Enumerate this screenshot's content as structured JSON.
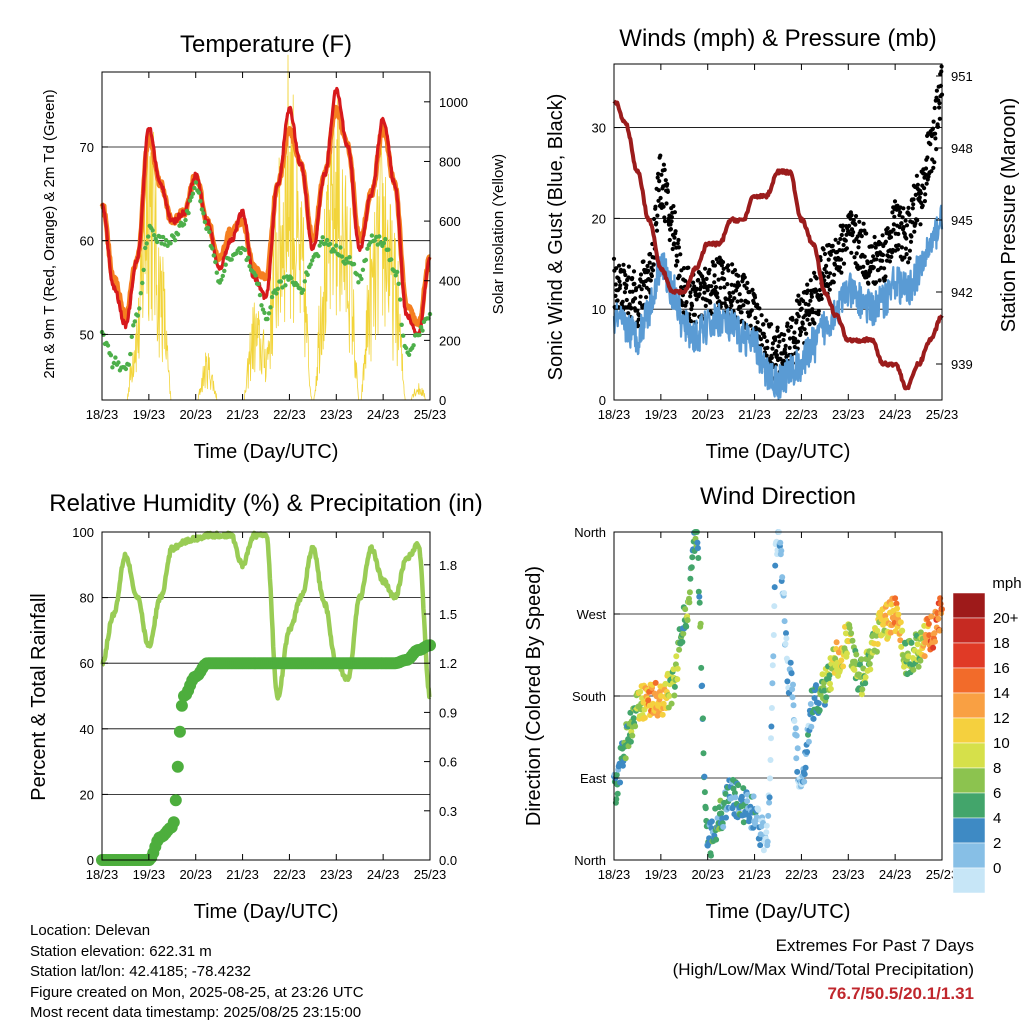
{
  "colors": {
    "temp_2m": "#d7191c",
    "temp_9m": "#f57f20",
    "dewpoint": "#4daf4a",
    "solar": "#f2d43a",
    "wind": "#5a9bd4",
    "gust": "#000000",
    "pressure": "#9b1c1c",
    "humidity": "#99cc55",
    "precip": "#4dae3d",
    "extremes_text": "#c0272d"
  },
  "day_ticks": [
    "18/23",
    "19/23",
    "20/23",
    "21/23",
    "22/23",
    "23/23",
    "24/23",
    "25/23"
  ],
  "charts": {
    "temperature": {
      "title": "Temperature (F)",
      "xlabel": "Time (Day/UTC)",
      "ylabel_left": "2m & 9m T (Red, Orange) & 2m Td (Green)",
      "ylabel_right": "Solar Insolation (Yellow)",
      "left_ticks": [
        "50",
        "60",
        "70"
      ],
      "right_ticks": [
        "0",
        "200",
        "400",
        "600",
        "800",
        "1000"
      ]
    },
    "winds": {
      "title": "Winds (mph) & Pressure (mb)",
      "xlabel": "Time (Day/UTC)",
      "ylabel_left": "Sonic Wind & Gust (Blue, Black)",
      "ylabel_right": "Station Pressure (Maroon)",
      "left_ticks": [
        "0",
        "10",
        "20",
        "30"
      ],
      "right_ticks": [
        "939",
        "942",
        "945",
        "948",
        "951"
      ]
    },
    "humidity": {
      "title": "Relative Humidity (%) & Precipitation (in)",
      "xlabel": "Time (Day/UTC)",
      "ylabel_left": "Percent & Total Rainfall",
      "left_ticks": [
        "0",
        "20",
        "40",
        "60",
        "80",
        "100"
      ],
      "right_ticks": [
        "0.0",
        "0.3",
        "0.6",
        "0.9",
        "1.2",
        "1.5",
        "1.8"
      ]
    },
    "direction": {
      "title": "Wind Direction",
      "xlabel": "Time (Day/UTC)",
      "ylabel_left": "Direction (Colored By Speed)",
      "left_ticks": [
        "North",
        "East",
        "South",
        "West",
        "North"
      ],
      "legend_title": "mph",
      "legend_labels": [
        "20+",
        "18",
        "16",
        "14",
        "12",
        "10",
        "8",
        "6",
        "4",
        "2",
        "0"
      ],
      "legend_colors": [
        "#9e1a1a",
        "#c62a22",
        "#e03a26",
        "#f26b2a",
        "#f9a043",
        "#f5d03e",
        "#d6e04a",
        "#8cc34f",
        "#43a56b",
        "#3e8ac4",
        "#87bfe6",
        "#c7e6f7"
      ]
    }
  },
  "info": {
    "location": "Location: Delevan",
    "elevation": "Station elevation: 622.31 m",
    "latlon": "Station lat/lon: 42.4185; -78.4232",
    "created": "Figure created on Mon, 2025-08-25, at 23:26 UTC",
    "timestamp": "Most recent data timestamp: 2025/08/25 23:15:00"
  },
  "extremes": {
    "title": "Extremes For Past 7 Days",
    "subtitle": "(High/Low/Max Wind/Total Precipitation)",
    "values": "76.7/50.5/20.1/1.31"
  },
  "chart_data": [
    {
      "type": "line",
      "title": "Temperature (F)",
      "xlabel": "Time (Day/UTC)",
      "ylabel": "2m & 9m T (Red, Orange) & 2m Td (Green)",
      "y2label": "Solar Insolation (Yellow)",
      "x": [
        0,
        0.25,
        0.5,
        0.75,
        1,
        1.25,
        1.5,
        1.75,
        2,
        2.25,
        2.5,
        2.75,
        3,
        3.25,
        3.5,
        3.75,
        4,
        4.25,
        4.5,
        4.75,
        5,
        5.25,
        5.5,
        5.75,
        6,
        6.25,
        6.5,
        6.75,
        7
      ],
      "ylim": [
        43,
        78
      ],
      "y2lim": [
        0,
        1100
      ],
      "series": [
        {
          "name": "2m T",
          "axis": "left",
          "values": [
            64,
            55,
            51,
            58,
            72,
            66,
            62,
            63,
            67,
            62,
            57,
            60,
            63,
            56,
            54,
            66,
            74,
            68,
            59,
            67,
            76,
            70,
            59,
            65,
            73,
            66,
            52,
            50,
            58
          ]
        },
        {
          "name": "9m T",
          "axis": "left",
          "values": [
            64,
            56,
            52,
            58,
            71,
            66,
            62,
            63,
            67,
            62,
            58,
            61,
            62,
            57,
            56,
            66,
            72,
            68,
            60,
            67,
            74,
            70,
            60,
            65,
            72,
            66,
            53,
            51,
            58
          ]
        },
        {
          "name": "2m Td",
          "axis": "left",
          "values": [
            50,
            47,
            46,
            52,
            61,
            60,
            60,
            62,
            66,
            61,
            56,
            58,
            59,
            56,
            52,
            55,
            56,
            55,
            58,
            60,
            59,
            58,
            56,
            60,
            60,
            57,
            48,
            50,
            52
          ]
        },
        {
          "name": "Solar Insolation",
          "axis": "right",
          "values": [
            0,
            0,
            0,
            300,
            1000,
            500,
            0,
            0,
            0,
            150,
            0,
            0,
            0,
            300,
            200,
            700,
            1050,
            600,
            0,
            600,
            950,
            650,
            0,
            500,
            800,
            500,
            0,
            50,
            0
          ]
        }
      ]
    },
    {
      "type": "line",
      "title": "Winds (mph) & Pressure (mb)",
      "xlabel": "Time (Day/UTC)",
      "ylabel": "Sonic Wind & Gust (Blue, Black)",
      "y2label": "Station Pressure (Maroon)",
      "x": [
        0,
        0.25,
        0.5,
        0.75,
        1,
        1.25,
        1.5,
        1.75,
        2,
        2.25,
        2.5,
        2.75,
        3,
        3.25,
        3.5,
        3.75,
        4,
        4.25,
        4.5,
        4.75,
        5,
        5.25,
        5.5,
        5.75,
        6,
        6.25,
        6.5,
        6.75,
        7
      ],
      "ylim": [
        0,
        37
      ],
      "y2lim": [
        937.5,
        951.5
      ],
      "series": [
        {
          "name": "Sonic Wind",
          "axis": "left",
          "values": [
            9,
            8,
            7,
            10,
            15,
            12,
            8,
            7,
            8,
            9,
            8,
            7,
            6,
            3,
            2,
            3,
            4,
            6,
            8,
            10,
            12,
            11,
            10,
            11,
            13,
            12,
            14,
            17,
            20
          ]
        },
        {
          "name": "Gust",
          "axis": "left",
          "values": [
            13,
            12,
            11,
            14,
            24,
            19,
            12,
            11,
            12,
            13,
            12,
            11,
            9,
            6,
            5,
            6,
            9,
            11,
            14,
            16,
            18,
            17,
            15,
            16,
            19,
            18,
            22,
            27,
            34
          ]
        },
        {
          "name": "Station Pressure",
          "axis": "right",
          "values": [
            950,
            949,
            947,
            945,
            943,
            942,
            942,
            943,
            944,
            944,
            945,
            945,
            946,
            946,
            947,
            947,
            945,
            944,
            942,
            941,
            940,
            940,
            940,
            939,
            939,
            938,
            939,
            940,
            941
          ]
        }
      ]
    },
    {
      "type": "line",
      "title": "Relative Humidity (%) & Precipitation (in)",
      "xlabel": "Time (Day/UTC)",
      "ylabel": "Percent & Total Rainfall",
      "x": [
        0,
        0.25,
        0.5,
        0.75,
        1,
        1.25,
        1.5,
        1.75,
        2,
        2.25,
        2.5,
        2.75,
        3,
        3.25,
        3.5,
        3.75,
        4,
        4.25,
        4.5,
        4.75,
        5,
        5.25,
        5.5,
        5.75,
        6,
        6.25,
        6.5,
        6.75,
        7
      ],
      "ylim": [
        0,
        100
      ],
      "y2lim": [
        0,
        2.0
      ],
      "series": [
        {
          "name": "Relative Humidity",
          "axis": "left",
          "values": [
            60,
            75,
            93,
            80,
            65,
            80,
            95,
            97,
            98,
            99,
            99,
            99,
            90,
            99,
            99,
            50,
            70,
            80,
            95,
            78,
            60,
            55,
            80,
            95,
            85,
            80,
            92,
            96,
            50
          ]
        },
        {
          "name": "Total Precipitation",
          "axis": "right",
          "values": [
            0,
            0,
            0,
            0,
            0,
            0.14,
            0.2,
            1.0,
            1.12,
            1.2,
            1.2,
            1.2,
            1.2,
            1.2,
            1.2,
            1.2,
            1.2,
            1.2,
            1.2,
            1.2,
            1.2,
            1.2,
            1.2,
            1.2,
            1.2,
            1.2,
            1.22,
            1.28,
            1.31
          ]
        }
      ]
    },
    {
      "type": "scatter",
      "title": "Wind Direction",
      "xlabel": "Time (Day/UTC)",
      "ylabel": "Direction (Colored By Speed)",
      "x": [
        0,
        0.25,
        0.5,
        0.75,
        1,
        1.25,
        1.5,
        1.75,
        2,
        2.25,
        2.5,
        2.75,
        3,
        3.25,
        3.5,
        3.75,
        4,
        4.25,
        4.5,
        4.75,
        5,
        5.25,
        5.5,
        5.75,
        6,
        6.25,
        6.5,
        6.75,
        7
      ],
      "ylim": [
        0,
        360
      ],
      "series": [
        {
          "name": "direction",
          "values": [
            75,
            130,
            170,
            175,
            175,
            190,
            260,
            360,
            20,
            45,
            70,
            60,
            50,
            20,
            360,
            200,
            80,
            170,
            190,
            220,
            240,
            200,
            230,
            260,
            270,
            220,
            230,
            250,
            270
          ]
        },
        {
          "name": "speed",
          "values": [
            6,
            7,
            10,
            15,
            14,
            9,
            8,
            7,
            6,
            6,
            5,
            6,
            4,
            2,
            2,
            3,
            3,
            5,
            8,
            12,
            11,
            8,
            10,
            12,
            15,
            9,
            10,
            16,
            17
          ]
        }
      ]
    }
  ]
}
